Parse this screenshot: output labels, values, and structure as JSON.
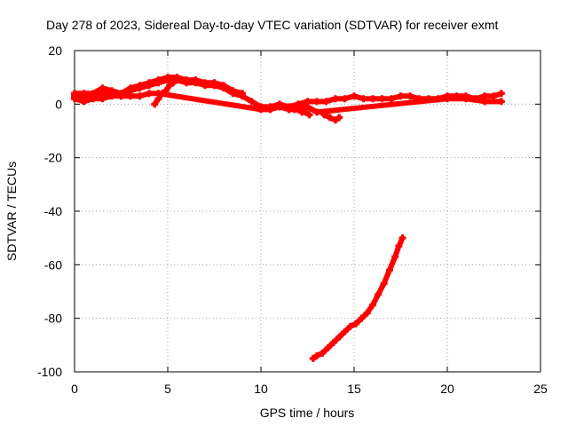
{
  "chart_data": {
    "type": "scatter",
    "title": "Day 278 of 2023, Sidereal Day-to-day VTEC variation (SDTVAR) for receiver exmt",
    "xlabel": "GPS time / hours",
    "ylabel": "SDTVAR / TECUs",
    "xlim": [
      0,
      25
    ],
    "ylim": [
      -100,
      20
    ],
    "xticks": [
      0,
      5,
      10,
      15,
      20,
      25
    ],
    "yticks": [
      -100,
      -80,
      -60,
      -40,
      -20,
      0,
      20
    ],
    "grid": true,
    "legend": "none",
    "marker": "plus",
    "color": "#ff0000",
    "series": [
      {
        "name": "main",
        "x": [
          0.0,
          0.5,
          1.0,
          1.5,
          2.0,
          2.5,
          3.0,
          3.5,
          4.0,
          4.5,
          5.0,
          5.5,
          6.0,
          6.5,
          7.0,
          7.5,
          8.0,
          8.5,
          9.0,
          9.5,
          10.0,
          10.5,
          11.0,
          11.5,
          12.0,
          12.5,
          13.0,
          13.5,
          14.0,
          14.5,
          15.0,
          15.5,
          16.0,
          16.5,
          17.0,
          17.5,
          18.0,
          18.5,
          19.0,
          19.5,
          20.0,
          20.5,
          21.0,
          21.5,
          22.0,
          22.5,
          22.9
        ],
        "y": [
          3,
          3,
          3,
          4,
          4,
          3,
          5,
          6,
          7,
          8,
          9,
          9,
          8,
          8,
          7,
          7,
          6,
          4,
          3,
          1,
          -1,
          -1,
          0,
          -1,
          0,
          1,
          1,
          1,
          2,
          2,
          3,
          2,
          2,
          2,
          2,
          3,
          3,
          2,
          2,
          2,
          3,
          3,
          3,
          2,
          3,
          3,
          4
        ]
      },
      {
        "name": "upper-band",
        "x": [
          0.0,
          0.5,
          1.0,
          1.5,
          2.0,
          2.5,
          3.0,
          3.5,
          4.0,
          4.5,
          5.0,
          5.5,
          6.0,
          6.5,
          7.0,
          7.5,
          8.0,
          8.5,
          9.0
        ],
        "y": [
          4,
          4,
          4,
          6,
          5,
          4,
          6,
          7,
          8,
          9,
          10,
          10,
          9,
          9,
          8,
          8,
          7,
          5,
          4
        ]
      },
      {
        "name": "lower-band",
        "x": [
          0.0,
          0.5,
          1.0,
          1.5,
          2.0,
          2.5,
          3.0,
          3.5,
          4.0,
          4.5,
          10.0,
          10.5,
          11.0,
          11.5,
          12.0,
          12.5,
          13.0,
          20.0,
          21.0,
          22.0,
          22.9
        ],
        "y": [
          2,
          1,
          2,
          2,
          3,
          3,
          3,
          3,
          4,
          4,
          -2,
          -2,
          -1,
          -2,
          -2,
          -1,
          -3,
          2,
          2,
          1,
          1
        ]
      },
      {
        "name": "descending-arc",
        "x": [
          4.3,
          4.5,
          4.7,
          4.9,
          5.1,
          5.3,
          5.5,
          5.7
        ],
        "y": [
          0,
          2,
          4,
          5,
          7,
          8,
          9,
          9
        ]
      },
      {
        "name": "post-10h-branch",
        "x": [
          11.6,
          11.8,
          12.0,
          12.2,
          12.4,
          12.6
        ],
        "y": [
          -1,
          -2,
          -2,
          -3,
          -3,
          -4
        ]
      },
      {
        "name": "isolated-points",
        "x": [
          13.4,
          13.7,
          14.0,
          14.2
        ],
        "y": [
          -4,
          -5,
          -6,
          -5
        ]
      },
      {
        "name": "lower-curve",
        "x": [
          12.8,
          13.0,
          13.3,
          13.6,
          13.9,
          14.2,
          14.5,
          14.8,
          15.1,
          15.4,
          15.7,
          16.0,
          16.3,
          16.6,
          16.9,
          17.2,
          17.4,
          17.6
        ],
        "y": [
          -95,
          -94,
          -93,
          -91,
          -89,
          -87,
          -85,
          -83,
          -82,
          -80,
          -78,
          -75,
          -71,
          -67,
          -62,
          -57,
          -53,
          -50
        ]
      }
    ]
  }
}
